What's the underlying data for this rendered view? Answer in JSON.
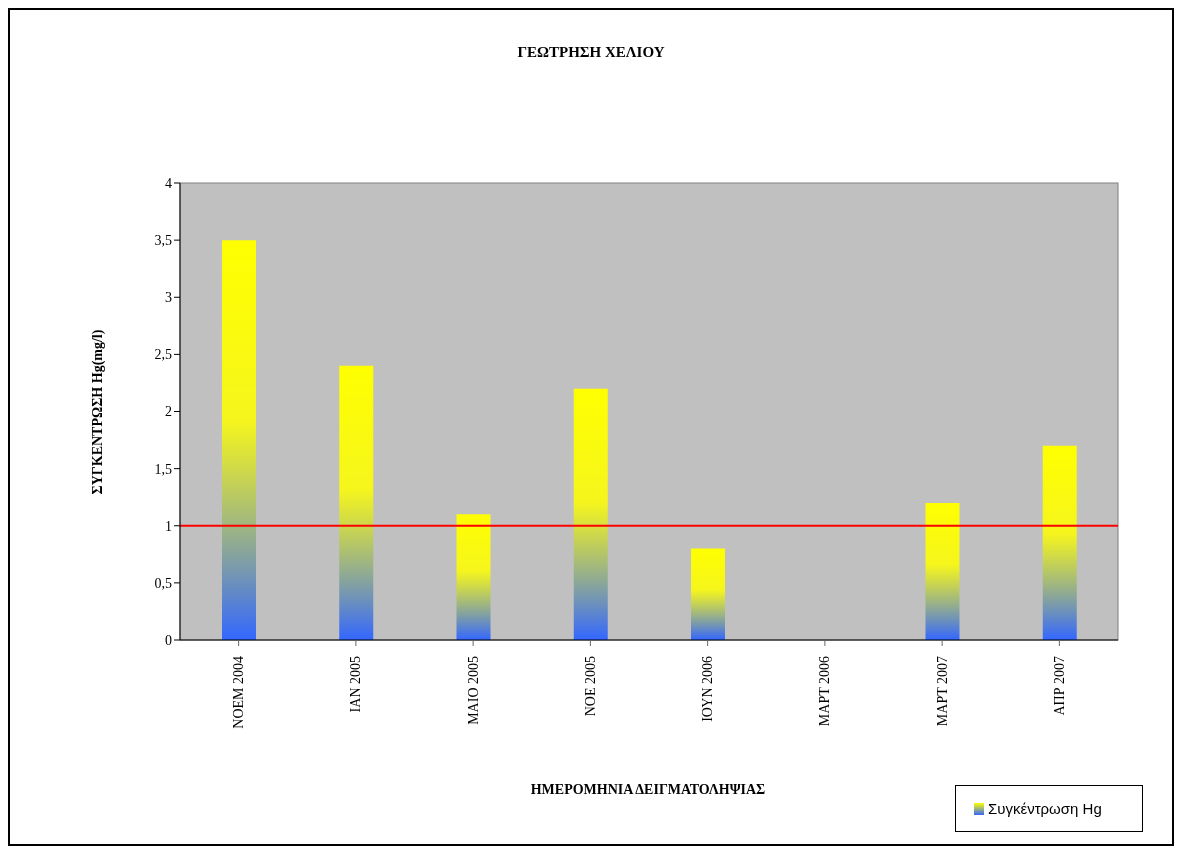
{
  "chart_data": {
    "type": "bar",
    "title": "ΓΕΩΤΡΗΣΗ ΧΕΛΙΟΥ",
    "xlabel": "ΗΜΕΡΟΜΗΝΙΑ ΔΕΙΓΜΑΤΟΛΗΨΙΑΣ",
    "ylabel": "ΣΥΓΚΕΝΤΡΩΣΗ Hg(mg/l)",
    "categories": [
      "ΝΟΕΜ 2004",
      "ΙΑΝ 2005",
      "ΜΑΙΟ 2005",
      "ΝΟΕ 2005",
      "ΙΟΥΝ 2006",
      "ΜΑΡΤ 2006",
      "ΜΑΡΤ 2007",
      "ΑΠΡ 2007"
    ],
    "series": [
      {
        "name": "Συγκέντρωση Hg",
        "color": "#ffff00",
        "values": [
          3.5,
          2.4,
          1.1,
          2.2,
          0.8,
          null,
          1.2,
          1.7
        ]
      }
    ],
    "ylim": [
      0,
      4
    ],
    "yticks": [
      0,
      {
        "value": 0.5,
        "label": "0,5"
      },
      1,
      {
        "value": 1.5,
        "label": "1,5"
      },
      2,
      {
        "value": 2.5,
        "label": "2,5"
      },
      3,
      {
        "value": 3.5,
        "label": "3,5"
      },
      4
    ],
    "ref_lines": [
      {
        "axis": "y",
        "value": 1,
        "color": "#ff0000"
      }
    ],
    "grid": false,
    "legend": "bottom right"
  }
}
